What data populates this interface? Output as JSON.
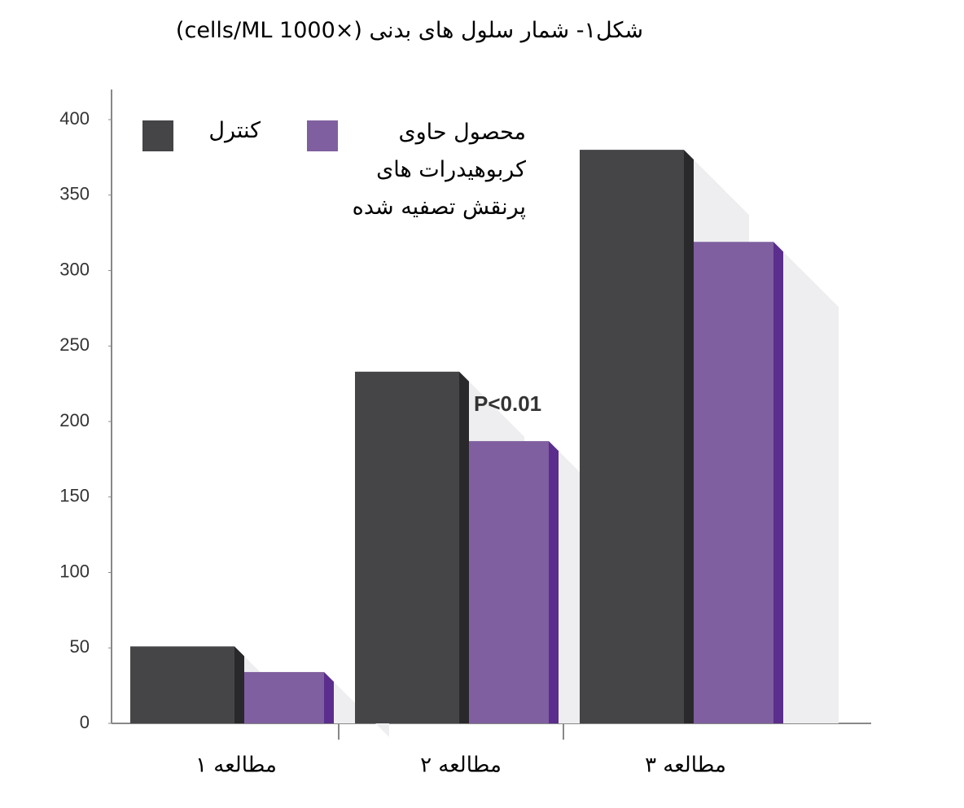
{
  "chart_data": {
    "type": "bar",
    "title": "شکل۱- شمار سلول های بدنی (×1000 cells/ML)",
    "categories": [
      "مطالعه ۱",
      "مطالعه ۲",
      "مطالعه ۳"
    ],
    "series": [
      {
        "name": "کنترل",
        "color": "#454548",
        "values": [
          51,
          233,
          380
        ]
      },
      {
        "name": "محصول حاوی کربوهیدرات های پرنقش تصفیه شده",
        "color": "#7f5f9f",
        "values": [
          34,
          187,
          319
        ]
      }
    ],
    "annotation": "P<0.01",
    "ylim": [
      0,
      400
    ],
    "yticks": [
      0,
      50,
      100,
      150,
      200,
      250,
      300,
      350,
      400
    ],
    "grid": false
  }
}
